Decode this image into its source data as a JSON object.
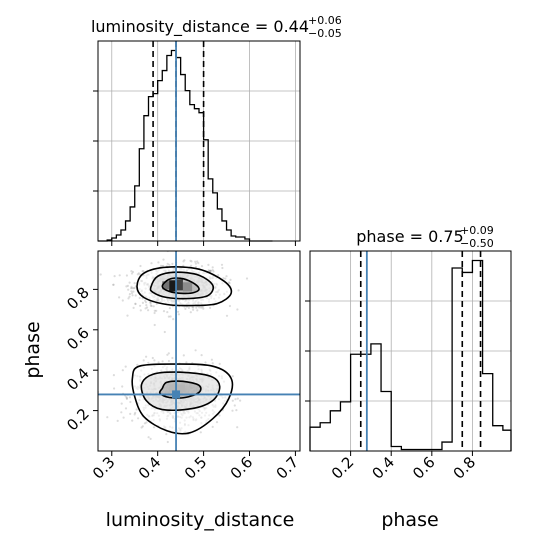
{
  "chart_data": [
    {
      "type": "histogram",
      "panel": "top-left",
      "title_main": "luminosity_distance = 0.44",
      "title_sup": "+0.06",
      "title_sub": "−0.05",
      "xlim": [
        0.27,
        0.71
      ],
      "bin_edges": [
        0.27,
        0.28,
        0.29,
        0.3,
        0.31,
        0.32,
        0.33,
        0.34,
        0.35,
        0.36,
        0.37,
        0.38,
        0.39,
        0.4,
        0.41,
        0.42,
        0.43,
        0.44,
        0.45,
        0.46,
        0.47,
        0.48,
        0.49,
        0.5,
        0.51,
        0.52,
        0.53,
        0.54,
        0.55,
        0.56,
        0.57,
        0.58,
        0.59,
        0.6,
        0.61,
        0.62,
        0.63,
        0.64,
        0.65
      ],
      "counts": [
        0,
        0,
        1,
        3,
        6,
        11,
        20,
        34,
        55,
        92,
        125,
        144,
        147,
        160,
        170,
        185,
        190,
        183,
        166,
        150,
        136,
        132,
        128,
        101,
        62,
        48,
        32,
        20,
        11,
        5,
        4,
        4,
        2,
        0,
        0,
        0,
        0,
        0
      ],
      "quantiles": [
        0.39,
        0.44,
        0.5
      ],
      "truth": 0.44,
      "grid": true
    },
    {
      "type": "histogram",
      "panel": "bottom-right",
      "title_main": "phase = 0.75",
      "title_sup": "+0.09",
      "title_sub": "−0.50",
      "xlabel": "phase",
      "xlim": [
        0.0,
        0.99
      ],
      "xticks": [
        "0.2",
        "0.4",
        "0.6",
        "0.8"
      ],
      "xtick_values": [
        0.2,
        0.4,
        0.6,
        0.8
      ],
      "bin_edges": [
        0.0,
        0.05,
        0.1,
        0.15,
        0.2,
        0.25,
        0.3,
        0.35,
        0.4,
        0.45,
        0.5,
        0.55,
        0.6,
        0.65,
        0.7,
        0.75,
        0.8,
        0.85,
        0.9,
        0.95,
        0.99
      ],
      "counts": [
        16,
        19,
        27,
        33,
        65,
        65,
        72,
        40,
        3,
        1,
        1,
        1,
        1,
        6,
        123,
        120,
        128,
        52,
        17,
        14
      ],
      "quantiles": [
        0.25,
        0.75,
        0.84
      ],
      "truth": 0.28,
      "grid": true
    },
    {
      "type": "scatter",
      "panel": "bottom-left",
      "xlabel": "luminosity_distance",
      "ylabel": "phase",
      "xlim": [
        0.27,
        0.71
      ],
      "ylim": [
        0.0,
        0.99
      ],
      "xticks": [
        "0.3",
        "0.4",
        "0.5",
        "0.6",
        "0.7"
      ],
      "xtick_values": [
        0.3,
        0.4,
        0.5,
        0.6,
        0.7
      ],
      "yticks": [
        "0.2",
        "0.4",
        "0.6",
        "0.8"
      ],
      "ytick_values": [
        0.2,
        0.4,
        0.6,
        0.8
      ],
      "truth": [
        0.44,
        0.28
      ],
      "clusters": [
        {
          "center": [
            0.443,
            0.81
          ],
          "spread": [
            0.048,
            0.055
          ]
        },
        {
          "center": [
            0.443,
            0.28
          ],
          "spread": [
            0.046,
            0.075
          ]
        }
      ],
      "contours": [
        {
          "level": "inner",
          "points": [
            [
              0.41,
              0.815
            ],
            [
              0.425,
              0.85
            ],
            [
              0.45,
              0.855
            ],
            [
              0.475,
              0.835
            ],
            [
              0.49,
              0.805
            ],
            [
              0.48,
              0.785
            ],
            [
              0.455,
              0.78
            ],
            [
              0.425,
              0.79
            ]
          ]
        },
        {
          "level": "middle",
          "points": [
            [
              0.385,
              0.81
            ],
            [
              0.4,
              0.865
            ],
            [
              0.44,
              0.885
            ],
            [
              0.49,
              0.87
            ],
            [
              0.52,
              0.82
            ],
            [
              0.51,
              0.77
            ],
            [
              0.47,
              0.755
            ],
            [
              0.42,
              0.76
            ],
            [
              0.39,
              0.785
            ]
          ]
        },
        {
          "level": "outer",
          "points": [
            [
              0.355,
              0.815
            ],
            [
              0.37,
              0.88
            ],
            [
              0.42,
              0.91
            ],
            [
              0.49,
              0.9
            ],
            [
              0.545,
              0.84
            ],
            [
              0.56,
              0.78
            ],
            [
              0.53,
              0.73
            ],
            [
              0.48,
              0.72
            ],
            [
              0.42,
              0.725
            ],
            [
              0.37,
              0.76
            ]
          ]
        },
        {
          "level": "inner",
          "points": [
            [
              0.41,
              0.31
            ],
            [
              0.42,
              0.34
            ],
            [
              0.455,
              0.345
            ],
            [
              0.49,
              0.325
            ],
            [
              0.49,
              0.29
            ],
            [
              0.46,
              0.265
            ],
            [
              0.425,
              0.265
            ],
            [
              0.405,
              0.285
            ]
          ]
        },
        {
          "level": "middle",
          "points": [
            [
              0.365,
              0.33
            ],
            [
              0.39,
              0.38
            ],
            [
              0.45,
              0.39
            ],
            [
              0.515,
              0.37
            ],
            [
              0.535,
              0.32
            ],
            [
              0.52,
              0.25
            ],
            [
              0.475,
              0.21
            ],
            [
              0.41,
              0.205
            ],
            [
              0.375,
              0.25
            ]
          ]
        },
        {
          "level": "outer",
          "points": [
            [
              0.345,
              0.36
            ],
            [
              0.36,
              0.42
            ],
            [
              0.44,
              0.43
            ],
            [
              0.52,
              0.42
            ],
            [
              0.56,
              0.36
            ],
            [
              0.555,
              0.26
            ],
            [
              0.52,
              0.16
            ],
            [
              0.47,
              0.09
            ],
            [
              0.42,
              0.1
            ],
            [
              0.37,
              0.17
            ],
            [
              0.35,
              0.27
            ]
          ]
        }
      ],
      "density_pixels": [
        {
          "x": [
            0.425,
            0.44
          ],
          "y": [
            0.79,
            0.845
          ],
          "shade": 0.9
        },
        {
          "x": [
            0.44,
            0.455
          ],
          "y": [
            0.795,
            0.85
          ],
          "shade": 0.75
        },
        {
          "x": [
            0.41,
            0.425
          ],
          "y": [
            0.8,
            0.84
          ],
          "shade": 0.55
        },
        {
          "x": [
            0.455,
            0.475
          ],
          "y": [
            0.79,
            0.835
          ],
          "shade": 0.45
        },
        {
          "x": [
            0.425,
            0.46
          ],
          "y": [
            0.29,
            0.33
          ],
          "shade": 0.35
        }
      ]
    }
  ],
  "colors": {
    "truth": "#4682b4",
    "line": "#000000",
    "grid": "#b0b0b0",
    "points": "#9a9a9a"
  }
}
